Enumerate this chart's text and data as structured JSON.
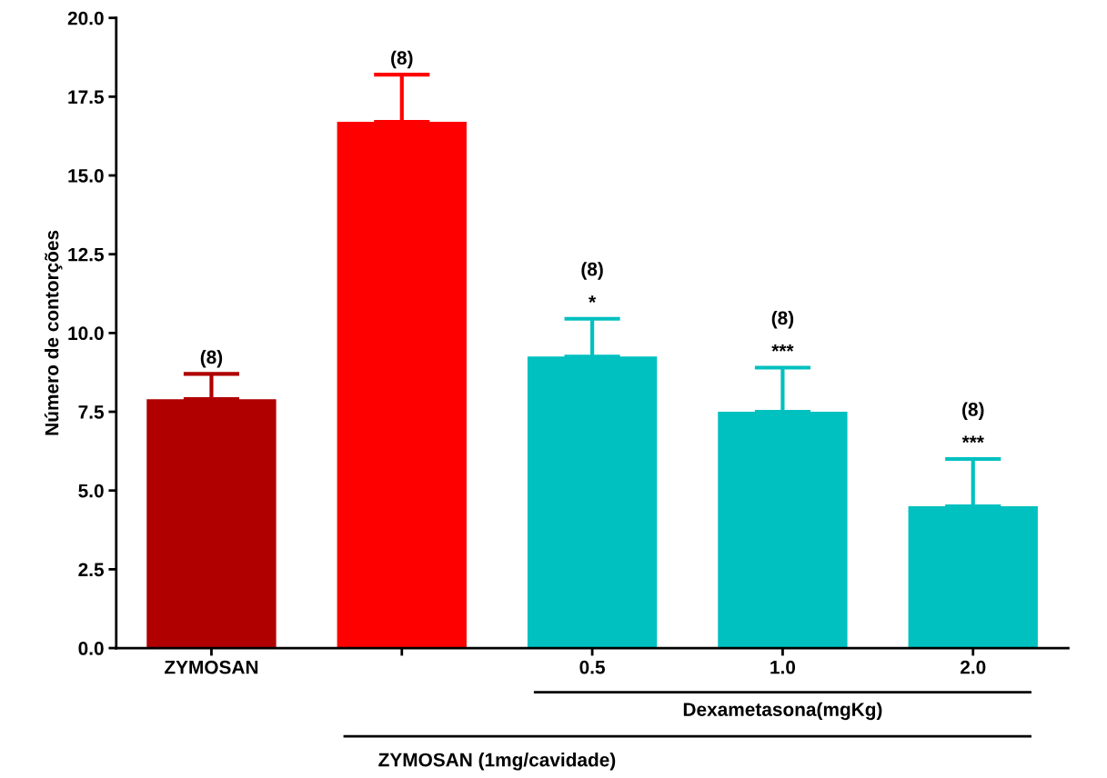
{
  "chart_data": {
    "type": "bar",
    "ylabel": "Número de contorções",
    "categories": [
      "ZYMOSAN",
      null,
      "0.5",
      "1.0",
      "2.0"
    ],
    "values": [
      7.9,
      16.7,
      9.25,
      7.5,
      4.5
    ],
    "errors": [
      [
        7.9,
        8.7
      ],
      [
        16.7,
        18.2
      ],
      [
        9.25,
        10.45
      ],
      [
        7.5,
        8.9
      ],
      [
        4.5,
        6.0
      ]
    ],
    "colors": [
      "#b00000",
      "#ff0000",
      "#00c0c0",
      "#00c0c0",
      "#00c0c0"
    ],
    "ylim": [
      0,
      20
    ],
    "yticks": [
      {
        "value": 0,
        "label": "0.0"
      },
      {
        "value": 2.5,
        "label": "2.5"
      },
      {
        "value": 5,
        "label": "5.0"
      },
      {
        "value": 7.5,
        "label": "7.5"
      },
      {
        "value": 10,
        "label": "10.0"
      },
      {
        "value": 12.5,
        "label": "12.5"
      },
      {
        "value": 15,
        "label": "15.0"
      },
      {
        "value": 17.5,
        "label": "17.5"
      },
      {
        "value": 20,
        "label": "20.0"
      }
    ],
    "grid": false,
    "legend": false,
    "annotations": [
      "(8)",
      "(8)",
      "(8)",
      "*",
      "(8)",
      "***",
      "(8)",
      "***",
      "Dexametasona(mgKg)",
      "ZYMOSAN (1mg/cavidade)"
    ]
  }
}
